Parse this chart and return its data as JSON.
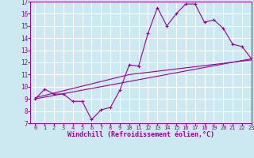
{
  "xlabel": "Windchill (Refroidissement éolien,°C)",
  "bg_color": "#cce8f0",
  "grid_color": "#ffffff",
  "line_color": "#990099",
  "xlim": [
    -0.5,
    23
  ],
  "ylim": [
    7,
    17
  ],
  "xticks": [
    0,
    1,
    2,
    3,
    4,
    5,
    6,
    7,
    8,
    9,
    10,
    11,
    12,
    13,
    14,
    15,
    16,
    17,
    18,
    19,
    20,
    21,
    22,
    23
  ],
  "yticks": [
    7,
    8,
    9,
    10,
    11,
    12,
    13,
    14,
    15,
    16,
    17
  ],
  "line1_x": [
    0,
    1,
    2,
    3,
    4,
    5,
    6,
    7,
    8,
    9,
    10,
    11,
    12,
    13,
    14,
    15,
    16,
    17,
    18,
    19,
    20,
    21,
    22,
    23
  ],
  "line1_y": [
    9.0,
    9.8,
    9.4,
    9.4,
    8.8,
    8.8,
    7.3,
    8.1,
    8.3,
    9.7,
    11.8,
    11.7,
    14.4,
    16.5,
    15.0,
    16.0,
    16.8,
    16.8,
    15.3,
    15.5,
    14.8,
    13.5,
    13.3,
    12.3
  ],
  "line2_x": [
    0,
    23
  ],
  "line2_y": [
    9.0,
    12.3
  ],
  "line3_x": [
    0,
    10,
    23
  ],
  "line3_y": [
    9.1,
    11.0,
    12.2
  ]
}
